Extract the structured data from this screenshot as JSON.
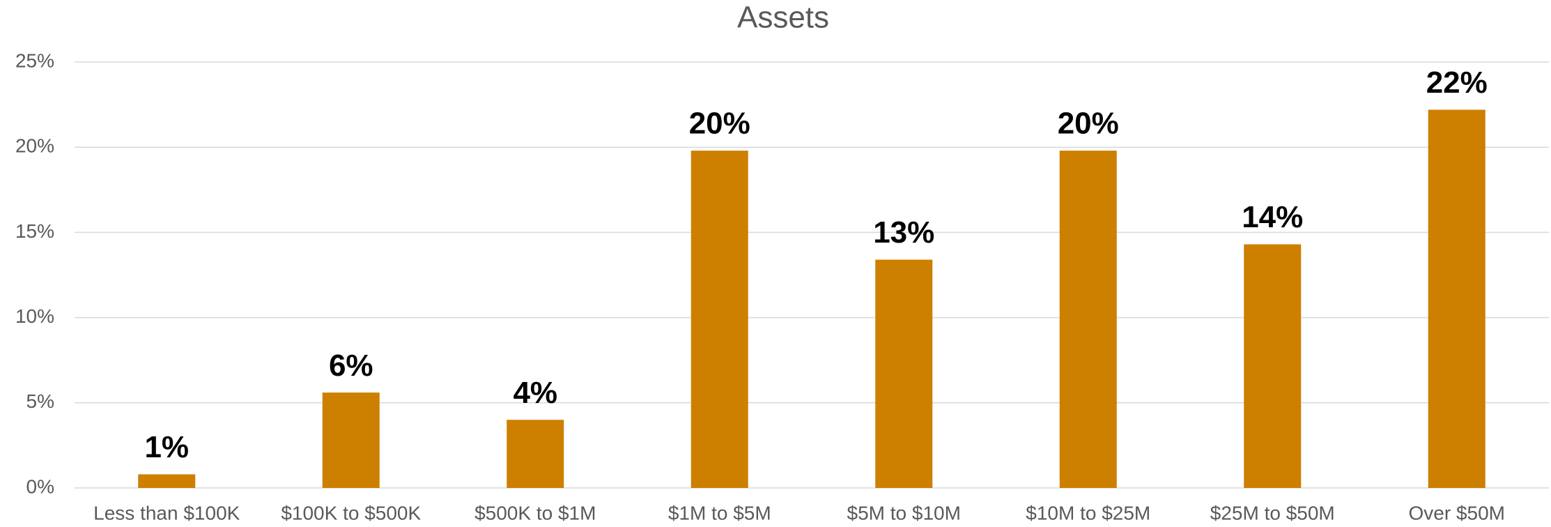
{
  "chart_data": {
    "type": "bar",
    "title": "Assets",
    "categories": [
      "Less than $100K",
      "$100K to $500K",
      "$500K to $1M",
      "$1M to $5M",
      "$5M to $10M",
      "$10M to $25M",
      "$25M to $50M",
      "Over $50M"
    ],
    "values": [
      0.8,
      5.6,
      4.0,
      19.8,
      13.4,
      19.8,
      14.3,
      22.2
    ],
    "value_labels": [
      "1%",
      "6%",
      "4%",
      "20%",
      "13%",
      "20%",
      "14%",
      "22%"
    ],
    "color": "#cd7f00",
    "ylim": [
      0,
      25
    ],
    "yticks": [
      {
        "value": 0,
        "label": "0%"
      },
      {
        "value": 5,
        "label": "5%"
      },
      {
        "value": 10,
        "label": "10%"
      },
      {
        "value": 15,
        "label": "15%"
      },
      {
        "value": 20,
        "label": "20%"
      },
      {
        "value": 25,
        "label": "25%"
      }
    ],
    "grid": true
  }
}
